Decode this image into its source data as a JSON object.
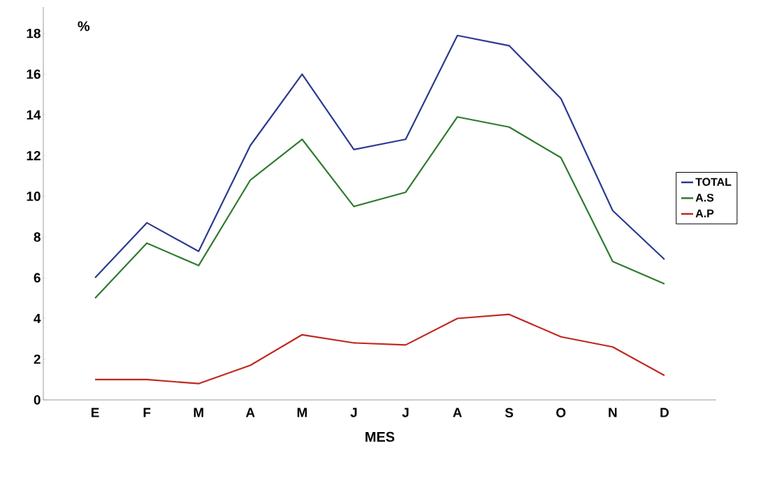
{
  "chart_data": {
    "type": "line",
    "ylabel": "%",
    "xlabel": "MES",
    "categories": [
      "E",
      "F",
      "M",
      "A",
      "M",
      "J",
      "J",
      "A",
      "S",
      "O",
      "N",
      "D"
    ],
    "series": [
      {
        "name": "TOTAL",
        "color": "#2b3990",
        "values": [
          6.0,
          8.7,
          7.3,
          12.5,
          16.0,
          12.3,
          12.8,
          17.9,
          17.4,
          14.8,
          9.3,
          6.9
        ]
      },
      {
        "name": "A.S",
        "color": "#2f7a2f",
        "values": [
          5.0,
          7.7,
          6.6,
          10.8,
          12.8,
          9.5,
          10.2,
          13.9,
          13.4,
          11.9,
          6.8,
          5.7
        ]
      },
      {
        "name": "A.P",
        "color": "#c0281e",
        "values": [
          1.0,
          1.0,
          0.8,
          1.7,
          3.2,
          2.8,
          2.7,
          4.0,
          4.2,
          3.1,
          2.6,
          1.2
        ]
      }
    ],
    "ylim": [
      0,
      19.3
    ],
    "yticks": [
      0,
      2,
      4,
      6,
      8,
      10,
      12,
      14,
      16,
      18
    ],
    "legend": "right",
    "marker": "none",
    "line_style": "solid"
  }
}
